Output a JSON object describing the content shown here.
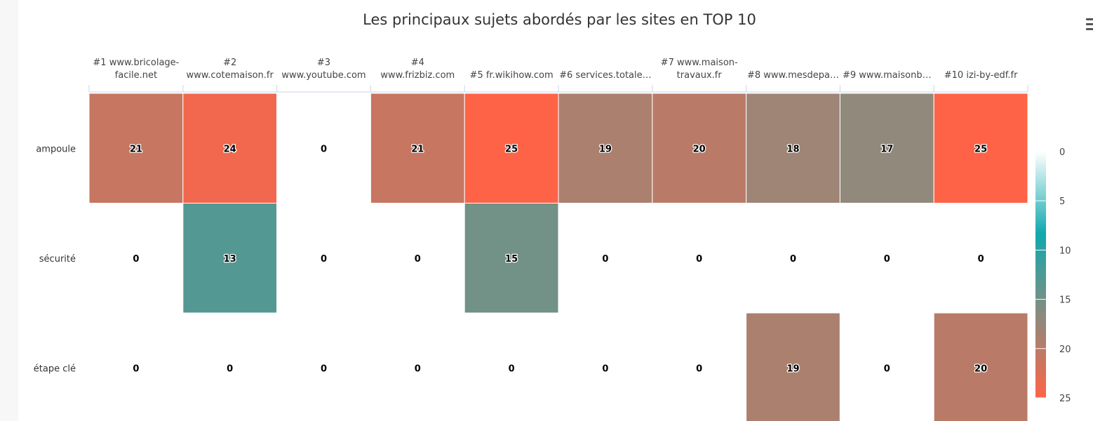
{
  "chart_data": {
    "type": "heatmap",
    "title": "Les principaux sujets abordés par les sites en TOP 10",
    "x_categories": [
      [
        "#1 www.bricolage-",
        "facile.net"
      ],
      [
        "#2",
        "www.cotemaison.fr"
      ],
      [
        "#3",
        "www.youtube.com"
      ],
      [
        "#4",
        "www.frizbiz.com"
      ],
      [
        "#5 fr.wikihow.com"
      ],
      [
        "#6 services.totale…"
      ],
      [
        "#7 www.maison-",
        "travaux.fr"
      ],
      [
        "#8 www.mesdepa…"
      ],
      [
        "#9 www.maisonb…"
      ],
      [
        "#10 izi-by-edf.fr"
      ]
    ],
    "y_categories": [
      "ampoule",
      "sécurité",
      "étape clé"
    ],
    "values": [
      [
        21,
        24,
        0,
        21,
        25,
        19,
        20,
        18,
        17,
        25
      ],
      [
        0,
        13,
        0,
        0,
        15,
        0,
        0,
        0,
        0,
        0
      ],
      [
        0,
        0,
        0,
        0,
        0,
        0,
        0,
        19,
        0,
        20
      ]
    ],
    "color_axis": {
      "min": 0,
      "max": 25,
      "tick_labels": [
        "0",
        "5",
        "10",
        "15",
        "20",
        "25"
      ],
      "stops": [
        "#ffffff",
        "#0fa9ad",
        "#8b8b7e",
        "#ff6347"
      ]
    },
    "legend_position": "right"
  },
  "icons": {
    "menu": "hamburger-menu-icon"
  }
}
